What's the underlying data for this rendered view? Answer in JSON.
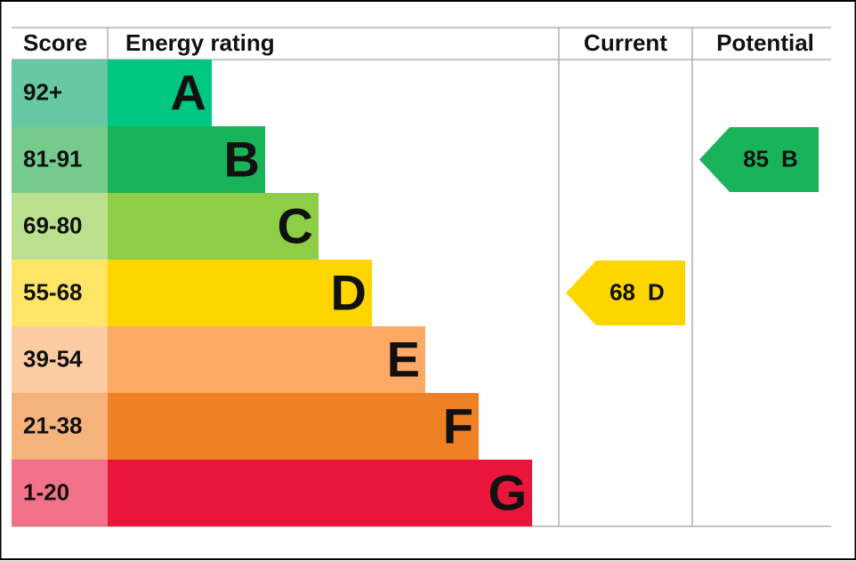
{
  "header": {
    "score": "Score",
    "rating": "Energy rating",
    "current": "Current",
    "potential": "Potential"
  },
  "bands": [
    {
      "range": "92+",
      "letter": "A",
      "color": "#00c781",
      "score_color": "#66c9a3"
    },
    {
      "range": "81-91",
      "letter": "B",
      "color": "#19b459",
      "score_color": "#75cb8b"
    },
    {
      "range": "69-80",
      "letter": "C",
      "color": "#8dce46",
      "score_color": "#bbe190"
    },
    {
      "range": "55-68",
      "letter": "D",
      "color": "#ffd500",
      "score_color": "#ffe566"
    },
    {
      "range": "39-54",
      "letter": "E",
      "color": "#fcaa65",
      "score_color": "#fdcca3"
    },
    {
      "range": "21-38",
      "letter": "F",
      "color": "#ef8023",
      "score_color": "#f5b37b"
    },
    {
      "range": "1-20",
      "letter": "G",
      "color": "#e9153b",
      "score_color": "#f27389"
    }
  ],
  "current": {
    "value": 68,
    "letter": "D"
  },
  "potential": {
    "value": 85,
    "letter": "B"
  }
}
